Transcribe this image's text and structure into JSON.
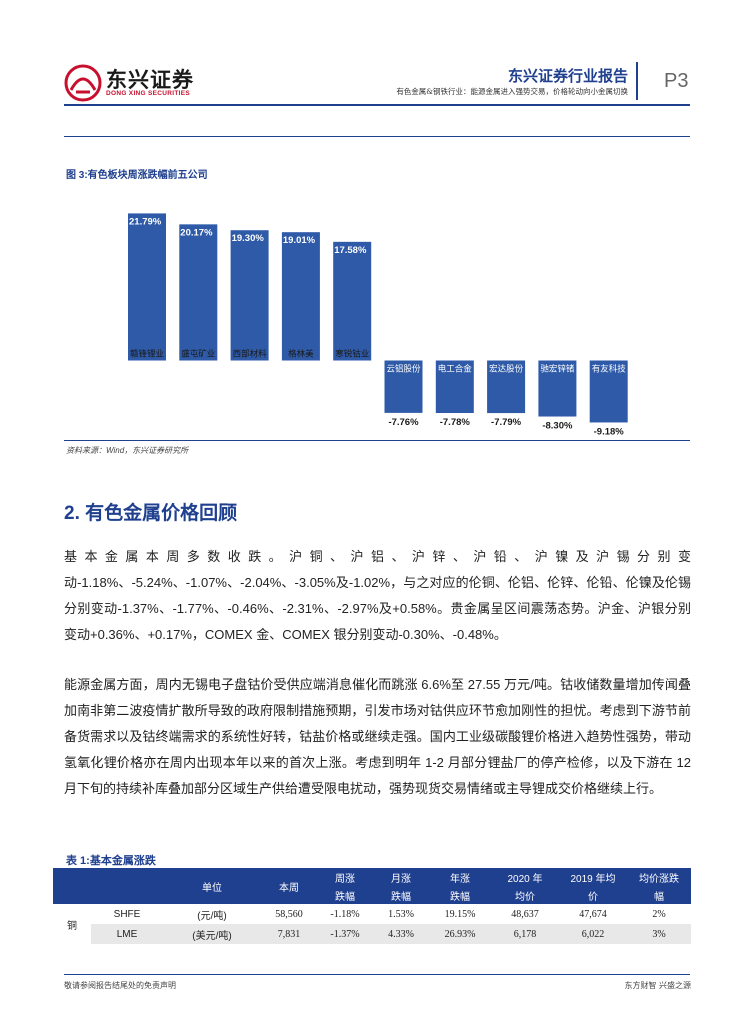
{
  "header": {
    "logo_cn": "东兴证券",
    "logo_en": "DONG XING SECURITIES",
    "report_type": "东兴证券行业报告",
    "subtitle": "有色金属&钢铁行业：能源金属进入强势交易，价格轮动向小金属切换",
    "page": "P3"
  },
  "figure": {
    "title": "图 3:有色板块周涨跌幅前五公司",
    "source": "资料来源：Wind，东兴证券研究所"
  },
  "chart_data": {
    "type": "bar",
    "categories": [
      "赣锋锂业",
      "盛屯矿业",
      "西部材料",
      "格林美",
      "寒锐钴业",
      "云铝股份",
      "电工合金",
      "宏达股份",
      "驰宏锌锗",
      "有友科技"
    ],
    "values": [
      21.79,
      20.17,
      19.3,
      19.01,
      17.58,
      -7.76,
      -7.78,
      -7.79,
      -8.3,
      -9.18
    ],
    "labels": [
      "21.79%",
      "20.17%",
      "19.30%",
      "19.01%",
      "17.58%",
      "-7.76%",
      "-7.78%",
      "-7.79%",
      "-8.30%",
      "-9.18%"
    ],
    "bar_color": "#2e5aa8",
    "ylim": [
      -10,
      22
    ],
    "title": "",
    "xlabel": "",
    "ylabel": "",
    "grid": false
  },
  "section": {
    "title": "2. 有色金属价格回顾",
    "para1": "基本金属本周多数收跌。沪铜、沪铝、沪锌、沪铅、沪镍及沪锡分别变动-1.18%、-5.24%、-1.07%、-2.04%、-3.05%及-1.02%，与之对应的伦铜、伦铝、伦锌、伦铅、伦镍及伦锡分别变动-1.37%、-1.77%、-0.46%、-2.31%、-2.97%及+0.58%。贵金属呈区间震荡态势。沪金、沪银分别变动+0.36%、+0.17%，COMEX 金、COMEX 银分别变动-0.30%、-0.48%。",
    "para2": "能源金属方面，周内无锡电子盘钴价受供应端消息催化而跳涨 6.6%至 27.55 万元/吨。钴收储数量增加传闻叠加南非第二波疫情扩散所导致的政府限制措施预期，引发市场对钴供应环节愈加刚性的担忧。考虑到下游节前备货需求以及钴终端需求的系统性好转，钴盐价格或继续走强。国内工业级碳酸锂价格进入趋势性强势，带动氢氧化锂价格亦在周内出现本年以来的首次上涨。考虑到明年 1-2 月部分锂盐厂的停产检修，以及下游在 12 月下旬的持续补库叠加部分区域生产供给遭受限电扰动，强势现货交易情绪或主导锂成交价格继续上行。"
  },
  "table": {
    "title": "表 1:基本金属涨跌",
    "headers": {
      "unit": "单位",
      "week": "本周",
      "week_chg_1": "周涨",
      "week_chg_2": "跌幅",
      "month_chg_1": "月涨",
      "month_chg_2": "跌幅",
      "year_chg_1": "年涨",
      "year_chg_2": "跌幅",
      "avg2020_1": "2020 年",
      "avg2020_2": "均价",
      "avg2019_1": "2019 年均",
      "avg2019_2": "价",
      "avgchg_1": "均价涨跌",
      "avgchg_2": "幅"
    },
    "metal": "铜",
    "rows": [
      {
        "exchange": "SHFE",
        "unit": "(元/吨)",
        "week": "58,560",
        "week_chg": "-1.18%",
        "month_chg": "1.53%",
        "year_chg": "19.15%",
        "avg2020": "48,637",
        "avg2019": "47,674",
        "avg_chg": "2%"
      },
      {
        "exchange": "LME",
        "unit": "(美元/吨)",
        "week": "7,831",
        "week_chg": "-1.37%",
        "month_chg": "4.33%",
        "year_chg": "26.93%",
        "avg2020": "6,178",
        "avg2019": "6,022",
        "avg_chg": "3%"
      }
    ]
  },
  "footer": {
    "left": "敬请参阅报告结尾处的免责声明",
    "right": "东方财智  兴盛之源"
  }
}
